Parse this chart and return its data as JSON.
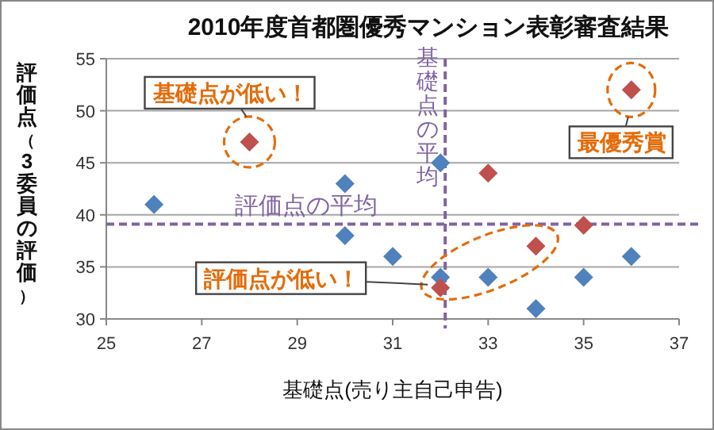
{
  "chart_data": {
    "type": "scatter",
    "title": "2010年度首都圏優秀マンション表彰審査結果",
    "xlabel": "基礎点(売り主自己申告)",
    "ylabel": "評価点（3委員の評価）",
    "xlim": [
      25,
      37
    ],
    "xticks": [
      25,
      27,
      29,
      31,
      33,
      35,
      37
    ],
    "ylim": [
      30,
      55
    ],
    "yticks": [
      30,
      35,
      40,
      45,
      50,
      55
    ],
    "grid": "y",
    "marker": "diamond",
    "series": [
      {
        "color": "#4f81bd",
        "x": [
          26,
          30,
          30,
          31,
          32,
          32,
          33,
          34,
          35,
          36
        ],
        "values": [
          41,
          43,
          38,
          36,
          45,
          34,
          34,
          31,
          34,
          36
        ]
      },
      {
        "color": "#c0504d",
        "x": [
          28,
          32,
          33,
          34,
          35,
          36
        ],
        "values": [
          47,
          33,
          44,
          37,
          39,
          52
        ]
      }
    ],
    "ref_lines": [
      {
        "axis": "x",
        "value": 32.1,
        "label": "基礎点の平均",
        "color": "#8064a2",
        "line_style": "dashed"
      },
      {
        "axis": "y",
        "value": 39.1,
        "label": "評価点の平均",
        "color": "#8064a2",
        "line_style": "dashed"
      }
    ],
    "annotations": [
      {
        "text": "基礎点が低い！",
        "x": 28,
        "y": 47
      },
      {
        "text": "最優秀賞",
        "x": 36,
        "y": 52
      },
      {
        "text": "評価点が低い！",
        "x": 32,
        "y": 33
      }
    ]
  }
}
